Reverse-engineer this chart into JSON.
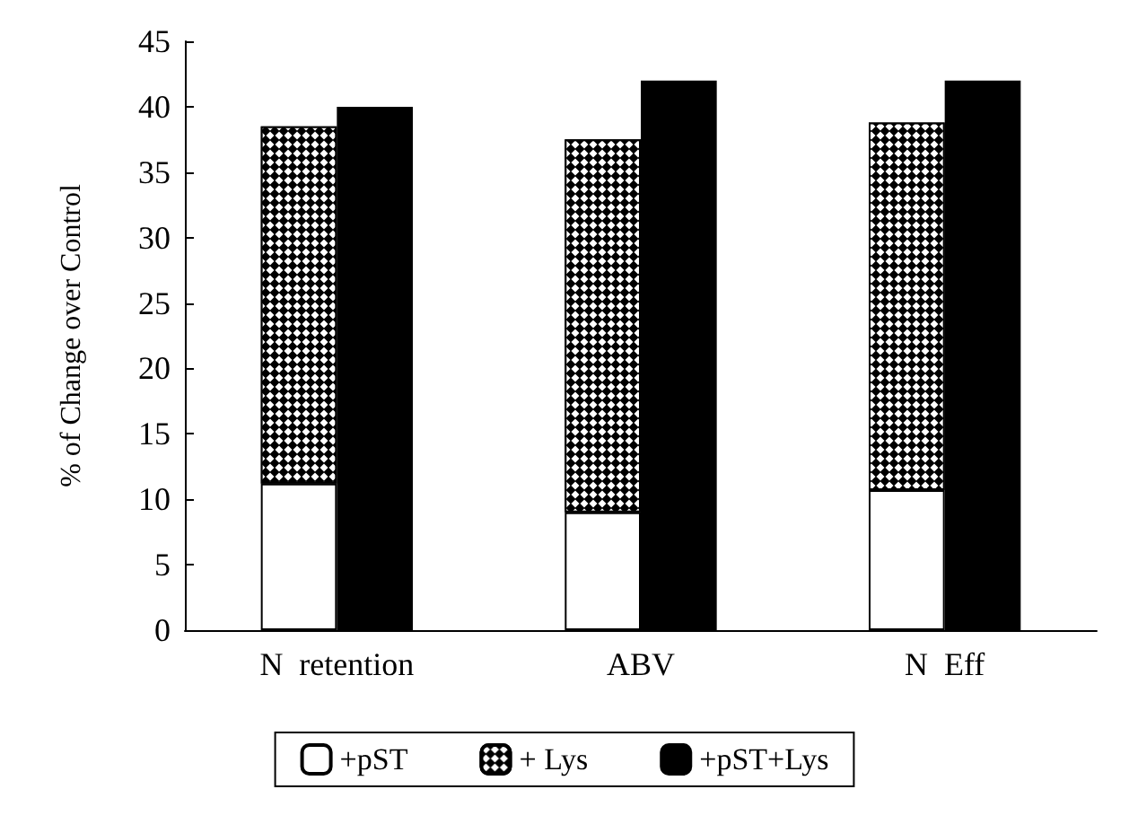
{
  "chart_data": {
    "type": "bar",
    "ylabel": "% of Change over Control",
    "categories": [
      null,
      "N  retention",
      null,
      null,
      null,
      "ABV",
      null,
      null,
      null,
      "N  Eff",
      null,
      null
    ],
    "series": [
      {
        "name": "+pST",
        "color": "#ffffff",
        "values": [
          null,
          11.2,
          null,
          null,
          null,
          9.0,
          null,
          null,
          null,
          10.7,
          null,
          null
        ]
      },
      {
        "name": "+ Lys",
        "color": "#000000",
        "values": [
          null,
          27.3,
          null,
          null,
          null,
          28.5,
          null,
          null,
          null,
          28.1,
          null,
          null
        ]
      },
      {
        "name": "+pST+Lys",
        "color": "#000000",
        "values": [
          null,
          null,
          40,
          null,
          null,
          null,
          42,
          null,
          null,
          null,
          42,
          null
        ]
      }
    ],
    "stacked": true,
    "ylim": [
      0,
      45
    ],
    "yticks": [
      0,
      5,
      10,
      15,
      20,
      25,
      30,
      35,
      40,
      45
    ],
    "grid": false,
    "legend": "bottom"
  }
}
